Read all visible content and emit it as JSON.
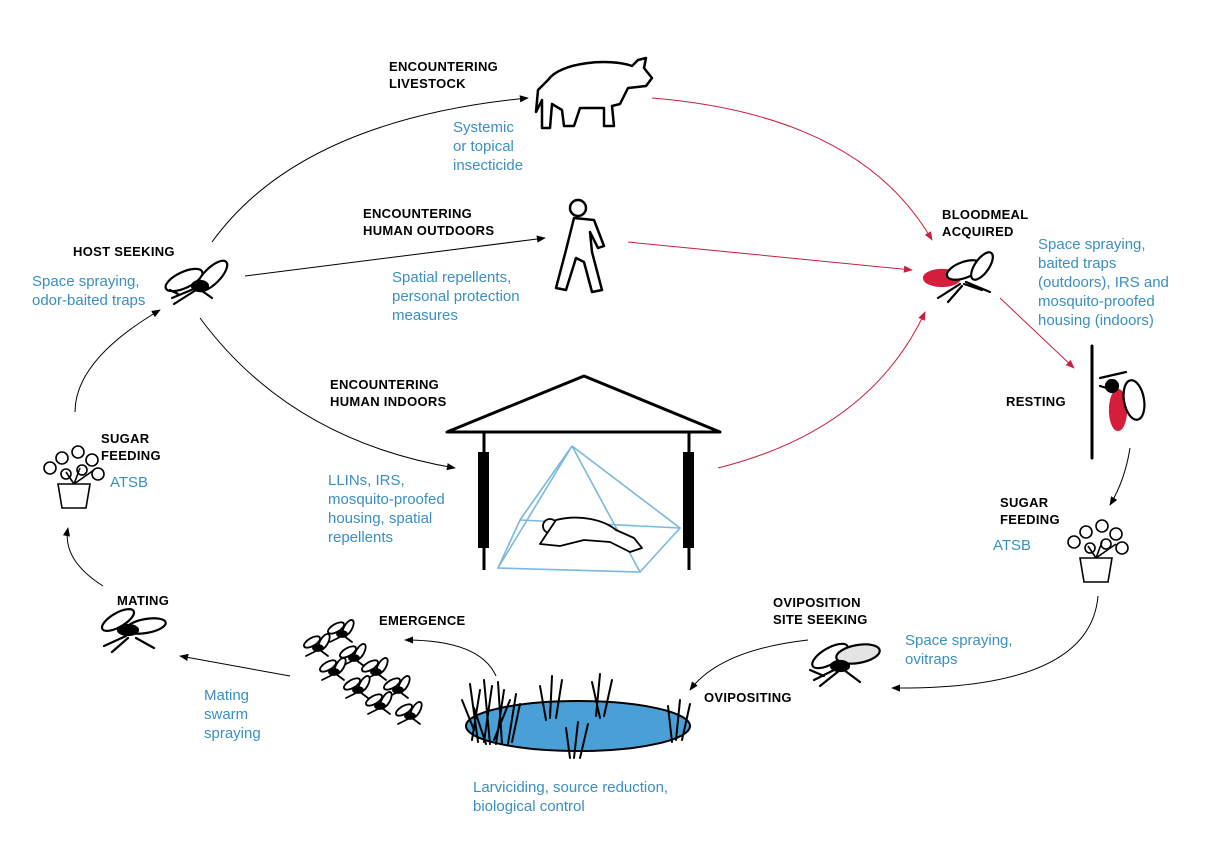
{
  "colors": {
    "stage_label": "#000000",
    "control_text": "#3a8fbf",
    "arrow": "#000000",
    "blood_arrow": "#c8203e",
    "blood": "#d41e3c",
    "water": "#4a9fd6",
    "net": "#7ab8dc"
  },
  "icons": [
    "cow-icon",
    "walking-person-icon",
    "mosquito-icon",
    "engorged-mosquito-icon",
    "flower-pot-icon",
    "house-icon",
    "bed-net-icon",
    "sleeping-person-icon",
    "breeding-pond-icon",
    "reeds-icon",
    "mosquito-swarm-icon"
  ],
  "stages": {
    "encountering_livestock": "ENCOUNTERING\nLIVESTOCK",
    "encountering_human_outdoors": "ENCOUNTERING\nHUMAN OUTDOORS",
    "host_seeking": "HOST SEEKING",
    "bloodmeal_acquired": "BLOODMEAL\nACQUIRED",
    "encountering_human_indoors": "ENCOUNTERING\nHUMAN INDOORS",
    "resting": "RESTING",
    "sugar_feeding_left": "SUGAR\nFEEDING",
    "sugar_feeding_right": "SUGAR\nFEEDING",
    "mating": "MATING",
    "emergence": "EMERGENCE",
    "oviposition_site_seeking": "OVIPOSITION\nSITE SEEKING",
    "ovipositing": "OVIPOSITING"
  },
  "controls": {
    "livestock": "Systemic\nor topical\ninsecticide",
    "outdoors": "Spatial repellents,\npersonal protection\nmeasures",
    "host_seeking": "Space spraying,\nodor-baited traps",
    "bloodmeal": "Space spraying,\nbaited traps\n(outdoors), IRS and\nmosquito-proofed\nhousing (indoors)",
    "indoors": "LLINs, IRS,\nmosquito-proofed\nhousing, spatial\nrepellents",
    "sugar_left": "ATSB",
    "sugar_right": "ATSB",
    "oviposition": "Space spraying,\novitraps",
    "mating": "Mating\nswarm\nspraying",
    "larval": "Larviciding, source reduction,\nbiological control"
  }
}
